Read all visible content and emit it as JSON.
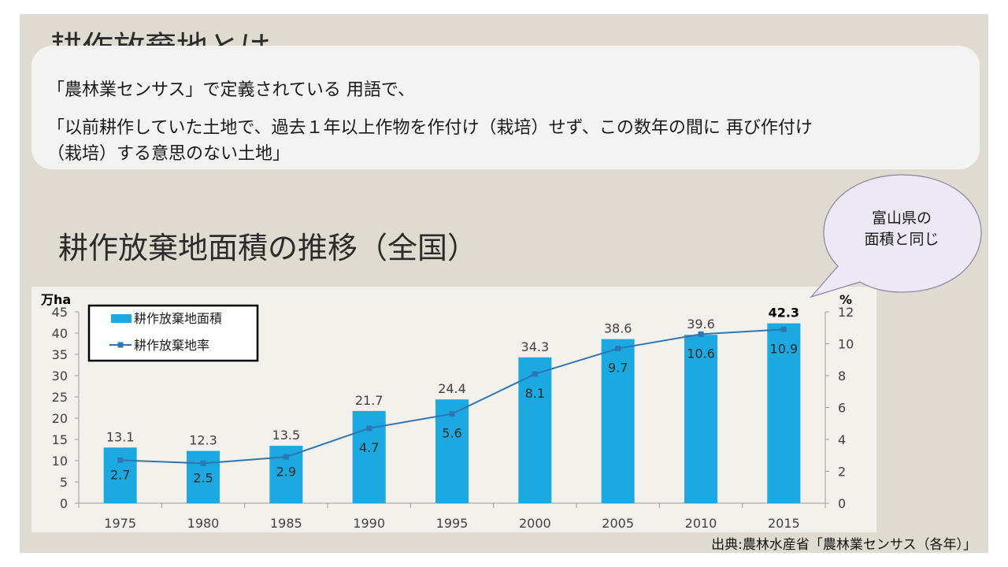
{
  "slide": {
    "title": "耕作放棄地とは",
    "definition": {
      "line1": "「農林業センサス」で定義されている 用語で、",
      "line2": "「以前耕作していた土地で、過去１年以上作物を作付け（栽培）せず、この数年の間に 再び作付け",
      "line3": "（栽培）する意思のない土地」"
    },
    "chart_title": "耕作放棄地面積の推移（全国）",
    "callout": {
      "line1": "富山県の",
      "line2": "面積と同じ"
    },
    "source": "出典:農林水産省「農林業センサス（各年）」"
  },
  "chart_data": {
    "type": "bar",
    "categories": [
      "1975",
      "1980",
      "1985",
      "1990",
      "1995",
      "2000",
      "2005",
      "2010",
      "2015"
    ],
    "series": [
      {
        "name": "耕作放棄地面積",
        "kind": "bar",
        "axis": "left",
        "values": [
          13.1,
          12.3,
          13.5,
          21.7,
          24.4,
          34.3,
          38.6,
          39.6,
          42.3
        ],
        "labels": [
          "13.1",
          "12.3",
          "13.5",
          "21.7",
          "24.4",
          "34.3",
          "38.6",
          "39.6",
          "42.3"
        ],
        "color": "#1ca8e0"
      },
      {
        "name": "耕作放棄地率",
        "kind": "line",
        "axis": "right",
        "values": [
          2.7,
          2.5,
          2.9,
          4.7,
          5.6,
          8.1,
          9.7,
          10.6,
          10.9
        ],
        "labels": [
          "2.7",
          "2.5",
          "2.9",
          "4.7",
          "5.6",
          "8.1",
          "9.7",
          "10.6",
          "10.9"
        ],
        "color": "#2e75b6"
      }
    ],
    "left_axis": {
      "unit": "万ha",
      "min": 0,
      "max": 45,
      "ticks": [
        "0",
        "5",
        "10",
        "15",
        "20",
        "25",
        "30",
        "35",
        "40",
        "45"
      ]
    },
    "right_axis": {
      "unit": "%",
      "min": 0,
      "max": 12,
      "ticks": [
        "0",
        "2",
        "4",
        "6",
        "8",
        "10",
        "12"
      ]
    },
    "legend": "top-left",
    "grid": false
  }
}
